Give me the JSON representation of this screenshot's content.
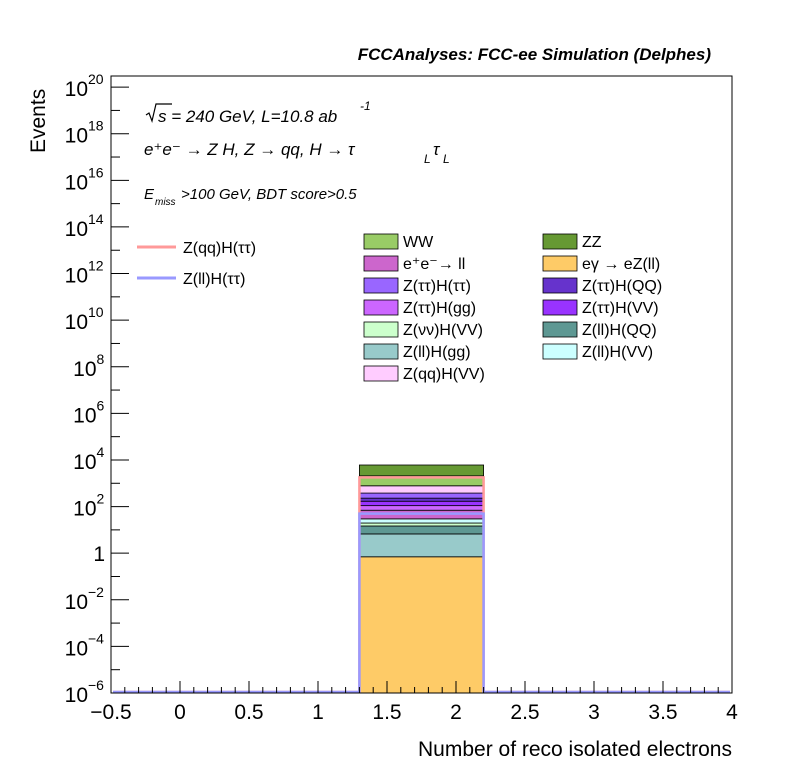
{
  "chart_data": {
    "type": "bar",
    "stacked": true,
    "log_y": true,
    "title": "FCCAnalyses: FCC-ee Simulation (Delphes)",
    "xlabel": "Number of reco isolated electrons",
    "ylabel": "Events",
    "xlim": [
      -0.5,
      4
    ],
    "ylim": [
      1e-06,
      3e+20
    ],
    "grid": false,
    "legend_position": "top",
    "x_ticks": [
      "−0.5",
      "0",
      "0.5",
      "1",
      "1.5",
      "2",
      "2.5",
      "3",
      "3.5",
      "4"
    ],
    "y_ticks": [
      {
        "base": "10",
        "exp": "20"
      },
      {
        "base": "10",
        "exp": "18"
      },
      {
        "base": "10",
        "exp": "16"
      },
      {
        "base": "10",
        "exp": "14"
      },
      {
        "base": "10",
        "exp": "12"
      },
      {
        "base": "10",
        "exp": "10"
      },
      {
        "base": "10",
        "exp": "8"
      },
      {
        "base": "10",
        "exp": "6"
      },
      {
        "base": "10",
        "exp": "4"
      },
      {
        "base": "10",
        "exp": "2"
      },
      {
        "base": "1",
        "exp": ""
      },
      {
        "base": "10",
        "exp": "−2"
      },
      {
        "base": "10",
        "exp": "−4"
      },
      {
        "base": "10",
        "exp": "−6"
      }
    ],
    "annotations": {
      "energy": "√s = 240 GeV, L=10.8 ab",
      "energy_exp": "-1",
      "process": "e⁺e⁻ → Z H, Z → qq, H → τ",
      "process_sub1": "L",
      "process_tau2": "τ",
      "process_sub2": "L",
      "selection_prefix": "E",
      "selection_sub": "miss",
      "selection_rest": ">100 GeV, BDT score>0.5"
    },
    "bin": {
      "x_low": 1.3,
      "x_high": 2.2
    },
    "stack": [
      {
        "name": "eγ → eZ(ll)",
        "value": 0.7,
        "color": "#FECB67"
      },
      {
        "name": "Z(ll)H(gg)",
        "value": 6,
        "color": "#98CACA"
      },
      {
        "name": "Z(ll)H(QQ)",
        "value": 8,
        "color": "#5E9893"
      },
      {
        "name": "Z(νν)H(VV)",
        "value": 5,
        "color": "#CCFFCC"
      },
      {
        "name": "Z(ll)H(VV)",
        "value": 10,
        "color": "#CCFFFF"
      },
      {
        "name": "e⁺e⁻→ ll",
        "value": 40,
        "color": "#CC66CC"
      },
      {
        "name": "Z(ττ)H(gg)",
        "value": 40,
        "color": "#CC66FF"
      },
      {
        "name": "Z(ττ)H(VV)",
        "value": 60,
        "color": "#9933FF"
      },
      {
        "name": "Z(ττ)H(QQ)",
        "value": 60,
        "color": "#6633CC"
      },
      {
        "name": "Z(ττ)H(ττ)",
        "value": 150,
        "color": "#9966FF"
      },
      {
        "name": "Z(qq)H(VV)",
        "value": 400,
        "color": "#FFCCFF"
      },
      {
        "name": "WW",
        "value": 1300,
        "color": "#99CC66"
      },
      {
        "name": "ZZ",
        "value": 4000,
        "color": "#669933"
      }
    ],
    "signals": [
      {
        "name": "Z(qq)H(ττ)",
        "value": 1800,
        "color": "#FF9999"
      },
      {
        "name": "Z(ll)H(ττ)",
        "value": 50,
        "color": "#9999FF"
      }
    ],
    "legend_col1": [
      "WW",
      "e⁺e⁻→ ll",
      "Z(ττ)H(ττ)",
      "Z(ττ)H(gg)",
      "Z(νν)H(VV)",
      "Z(ll)H(gg)",
      "Z(qq)H(VV)"
    ],
    "legend_col2": [
      "ZZ",
      "eγ → eZ(ll)",
      "Z(ττ)H(QQ)",
      "Z(ττ)H(VV)",
      "Z(ll)H(QQ)",
      "Z(ll)H(VV)"
    ]
  }
}
